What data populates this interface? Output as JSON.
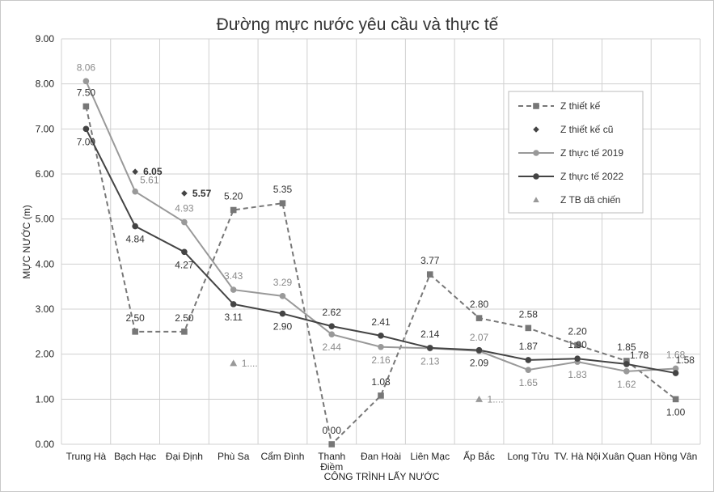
{
  "chart_data": {
    "type": "line",
    "title": "Đường mực nước yêu cầu và thực tế",
    "xlabel": "CÔNG TRÌNH LẤY NƯỚC",
    "ylabel": "MỰC NƯỚC (m)",
    "ylim": [
      0,
      9
    ],
    "yticks": [
      "0.00",
      "1.00",
      "2.00",
      "3.00",
      "4.00",
      "5.00",
      "6.00",
      "7.00",
      "8.00",
      "9.00"
    ],
    "grid": true,
    "legend_position": "top-right",
    "categories": [
      "Trung Hà",
      "Bạch Hạc",
      "Đại Định",
      "Phù Sa",
      "Cẩm Đình",
      "Thanh Điềm",
      "Đan Hoài",
      "Liên Mạc",
      "Ấp Bắc",
      "Long Tửu",
      "TV. Hà Nội",
      "Xuân Quan",
      "Hồng Vân"
    ],
    "series": [
      {
        "name": "Z thiết kế",
        "color": "#777777",
        "style": "dashed",
        "marker": "square",
        "values": [
          7.5,
          2.5,
          2.5,
          5.2,
          5.35,
          0.0,
          1.08,
          3.77,
          2.8,
          2.58,
          2.2,
          1.85,
          1.0
        ],
        "labels": [
          "7.50",
          "2.50",
          "2.50",
          "5.20",
          "5.35",
          "0.00",
          "1.08",
          "3.77",
          "2.80",
          "2.58",
          "2.20",
          "1.85",
          "1.00"
        ]
      },
      {
        "name": "Z thiết kế cũ",
        "color": "#444444",
        "style": "none",
        "marker": "diamond",
        "values": [
          null,
          6.05,
          5.57,
          null,
          null,
          null,
          null,
          null,
          null,
          null,
          null,
          null,
          null
        ],
        "labels": [
          null,
          "6.05",
          "5.57",
          null,
          null,
          null,
          null,
          null,
          null,
          null,
          null,
          null,
          null
        ]
      },
      {
        "name": "Z thực tế 2019",
        "color": "#999999",
        "style": "solid",
        "marker": "circle",
        "values": [
          8.06,
          5.61,
          4.93,
          3.43,
          3.29,
          2.44,
          2.16,
          2.13,
          2.07,
          1.65,
          1.83,
          1.62,
          1.68
        ],
        "labels": [
          "8.06",
          "5.61",
          "4.93",
          "3.43",
          "3.29",
          "2.44",
          "2.16",
          "2.13",
          "2.07",
          "1.65",
          "1.83",
          "1.62",
          "1.68"
        ]
      },
      {
        "name": "Z thực tế 2022",
        "color": "#444444",
        "style": "solid",
        "marker": "circle",
        "values": [
          7.0,
          4.84,
          4.27,
          3.11,
          2.9,
          2.62,
          2.41,
          2.14,
          2.09,
          1.87,
          1.9,
          1.78,
          1.58
        ],
        "labels": [
          "7.00",
          "4.84",
          "4.27",
          "3.11",
          "2.90",
          "2.62",
          "2.41",
          "2.14",
          "2.09",
          "1.87",
          "1.90",
          "1.78",
          "1.58"
        ]
      },
      {
        "name": "Z TB dã chiến",
        "color": "#999999",
        "style": "none",
        "marker": "triangle",
        "values": [
          null,
          null,
          null,
          1.8,
          null,
          null,
          null,
          null,
          1.0,
          null,
          null,
          null,
          null
        ],
        "labels": [
          null,
          null,
          null,
          "1....",
          null,
          null,
          null,
          null,
          "1....",
          null,
          null,
          null,
          null
        ]
      }
    ]
  }
}
